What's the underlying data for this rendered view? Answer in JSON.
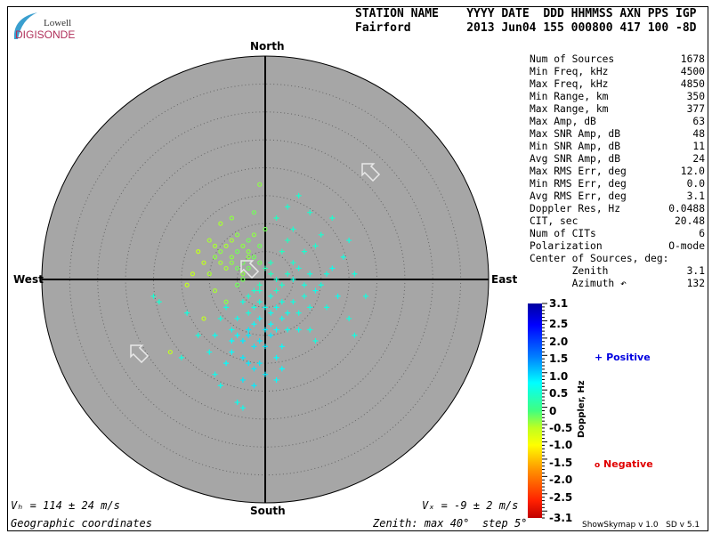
{
  "logo": {
    "line1": "Lowell",
    "line2": "DIGISONDE"
  },
  "header": {
    "labels": "STATION NAME    YYYY DATE  DDD HHMMSS AXN PPS IGP",
    "values": "Fairford        2013 Jun04 155 000800 417 100 -8D"
  },
  "stats": [
    {
      "label": "Num of Sources",
      "value": "1678"
    },
    {
      "label": "Min Freq, kHz",
      "value": "4500"
    },
    {
      "label": "Max Freq, kHz",
      "value": "4850"
    },
    {
      "label": "Min Range, km",
      "value": "350"
    },
    {
      "label": "Max Range, km",
      "value": "377"
    },
    {
      "label": "Max Amp, dB",
      "value": "63"
    },
    {
      "label": "Max SNR Amp, dB",
      "value": "48"
    },
    {
      "label": "Min SNR Amp, dB",
      "value": "11"
    },
    {
      "label": "Avg SNR Amp, dB",
      "value": "24"
    },
    {
      "label": "Max RMS Err, deg",
      "value": "12.0"
    },
    {
      "label": "Min RMS Err, deg",
      "value": "0.0"
    },
    {
      "label": "Avg RMS Err, deg",
      "value": "3.1"
    },
    {
      "label": "Doppler Res, Hz",
      "value": "0.0488"
    },
    {
      "label": "CIT, sec",
      "value": "20.48"
    },
    {
      "label": "Num of CITs",
      "value": "6"
    },
    {
      "label": "Polarization",
      "value": "O-mode"
    },
    {
      "label": "Center of Sources, deg:",
      "value": ""
    },
    {
      "label": "       Zenith",
      "value": "3.1"
    },
    {
      "label": "       Azimuth ↶",
      "value": "132"
    }
  ],
  "directions": {
    "north": "North",
    "south": "South",
    "east": "East",
    "west": "West"
  },
  "footer": {
    "vh": "Vₕ = 114 ± 24 m/s",
    "vz": "Vₓ = -9 ± 2 m/s",
    "coords": "Geographic coordinates",
    "zenith": "Zenith: max 40°  step 5°",
    "version": "ShowSkymap v 1.0   SD v 5.1"
  },
  "colors": {
    "disk": "#a6a6a6",
    "positive": "#0000e0",
    "negative": "#e00000"
  },
  "chart_data": {
    "type": "scatter",
    "projection": "polar skymap",
    "zenith_max": 40,
    "zenith_step": 5,
    "colorbar": {
      "label": "Doppler, Hz",
      "min": -3.1,
      "max": 3.1,
      "ticks": [
        "3.1",
        "2.5",
        "2.0",
        "1.5",
        "1.0",
        "0.5",
        "0",
        "-0.5",
        "-1.0",
        "-1.5",
        "-2.0",
        "-2.5",
        "-3.1"
      ]
    },
    "legend": {
      "positive": "Positive",
      "negative": "Negative"
    },
    "velocity_arrow_azimuth_deg": 315,
    "points_columns": [
      "east_deg",
      "north_deg",
      "doppler_hz"
    ],
    "points": [
      [
        -9,
        4,
        -0.3
      ],
      [
        -8,
        5,
        -0.3
      ],
      [
        -7,
        6,
        -0.4
      ],
      [
        -6,
        4,
        -0.3
      ],
      [
        -5,
        5,
        -0.2
      ],
      [
        -4,
        6,
        -0.3
      ],
      [
        -3,
        5,
        -0.3
      ],
      [
        -2,
        4,
        -0.2
      ],
      [
        -1,
        3,
        -0.2
      ],
      [
        -6,
        3,
        -0.3
      ],
      [
        -5,
        2,
        -0.2
      ],
      [
        -4,
        3,
        -0.2
      ],
      [
        -3,
        2,
        -0.2
      ],
      [
        -7,
        2,
        -0.4
      ],
      [
        -8,
        3,
        -0.4
      ],
      [
        -10,
        1,
        -0.4
      ],
      [
        -11,
        3,
        -0.5
      ],
      [
        -12,
        5,
        -0.5
      ],
      [
        -13,
        1,
        -0.5
      ],
      [
        -14,
        -1,
        -0.5
      ],
      [
        -9,
        -2,
        -0.4
      ],
      [
        -10,
        7,
        -0.4
      ],
      [
        -8,
        10,
        -0.4
      ],
      [
        -6,
        11,
        -0.3
      ],
      [
        -2,
        12,
        -0.2
      ],
      [
        -1,
        17,
        -0.3
      ],
      [
        -7,
        -4,
        -0.3
      ],
      [
        -5,
        -1,
        -0.2
      ],
      [
        -4,
        0,
        -0.2
      ],
      [
        -3,
        7,
        -0.2
      ],
      [
        -2,
        8,
        -0.3
      ],
      [
        -1,
        6,
        -0.2
      ],
      [
        0,
        9,
        -0.2
      ],
      [
        -6,
        7,
        -0.4
      ],
      [
        -9,
        6,
        -0.4
      ],
      [
        -11,
        -7,
        -0.5
      ],
      [
        -17,
        -13,
        -0.5
      ],
      [
        -5,
        8,
        -0.3
      ],
      [
        -4,
        1,
        -0.3
      ],
      [
        -3,
        4,
        -0.3
      ],
      [
        0,
        2,
        0.3
      ],
      [
        1,
        1,
        0.4
      ],
      [
        2,
        0,
        0.5
      ],
      [
        3,
        -1,
        0.5
      ],
      [
        4,
        1,
        0.5
      ],
      [
        5,
        0,
        0.6
      ],
      [
        6,
        2,
        0.6
      ],
      [
        7,
        -1,
        0.6
      ],
      [
        8,
        1,
        0.6
      ],
      [
        9,
        -2,
        0.7
      ],
      [
        -1,
        -1,
        0.4
      ],
      [
        -2,
        -2,
        0.5
      ],
      [
        -3,
        -3,
        0.5
      ],
      [
        -4,
        -4,
        0.6
      ],
      [
        -1,
        -4,
        0.6
      ],
      [
        0,
        -5,
        0.7
      ],
      [
        1,
        -3,
        0.6
      ],
      [
        2,
        -5,
        0.7
      ],
      [
        3,
        -4,
        0.6
      ],
      [
        4,
        -6,
        0.7
      ],
      [
        -1,
        -7,
        0.8
      ],
      [
        -2,
        -8,
        0.8
      ],
      [
        -3,
        -9,
        0.9
      ],
      [
        0,
        -9,
        0.9
      ],
      [
        1,
        -10,
        0.9
      ],
      [
        -1,
        -11,
        0.9
      ],
      [
        -2,
        -12,
        0.9
      ],
      [
        -3,
        -10,
        0.9
      ],
      [
        -4,
        -11,
        0.9
      ],
      [
        0,
        -12,
        0.9
      ],
      [
        1,
        -8,
        0.8
      ],
      [
        2,
        -9,
        0.8
      ],
      [
        -5,
        -7,
        0.7
      ],
      [
        -6,
        -9,
        0.7
      ],
      [
        -7,
        -5,
        0.6
      ],
      [
        -8,
        -7,
        0.6
      ],
      [
        -9,
        -10,
        0.7
      ],
      [
        -10,
        -13,
        0.7
      ],
      [
        5,
        -4,
        0.6
      ],
      [
        6,
        -6,
        0.6
      ],
      [
        7,
        -3,
        0.6
      ],
      [
        8,
        -5,
        0.6
      ],
      [
        10,
        -1,
        0.6
      ],
      [
        11,
        1,
        0.6
      ],
      [
        12,
        2,
        0.7
      ],
      [
        13,
        -3,
        0.7
      ],
      [
        14,
        4,
        0.6
      ],
      [
        15,
        7,
        0.6
      ],
      [
        16,
        1,
        0.6
      ],
      [
        18,
        -3,
        0.6
      ],
      [
        3,
        5,
        0.4
      ],
      [
        4,
        7,
        0.4
      ],
      [
        5,
        9,
        0.5
      ],
      [
        2,
        11,
        0.4
      ],
      [
        4,
        13,
        0.5
      ],
      [
        6,
        15,
        0.5
      ],
      [
        8,
        12,
        0.5
      ],
      [
        9,
        6,
        0.5
      ],
      [
        10,
        8,
        0.5
      ],
      [
        12,
        11,
        0.5
      ],
      [
        -4,
        -14,
        0.9
      ],
      [
        -3,
        -15,
        0.9
      ],
      [
        -2,
        -16,
        0.9
      ],
      [
        -4,
        -18,
        0.9
      ],
      [
        2,
        -14,
        0.8
      ],
      [
        3,
        -12,
        0.8
      ],
      [
        -7,
        -15,
        0.8
      ],
      [
        -6,
        -13,
        0.8
      ],
      [
        -12,
        -10,
        0.6
      ],
      [
        -14,
        -6,
        0.6
      ],
      [
        -9,
        -17,
        0.7
      ],
      [
        -15,
        -14,
        0.6
      ],
      [
        -3,
        -6,
        0.6
      ],
      [
        -2,
        -5,
        0.6
      ],
      [
        -1,
        -2,
        0.5
      ],
      [
        1,
        -6,
        0.7
      ],
      [
        2,
        -2,
        0.5
      ],
      [
        3,
        -7,
        0.7
      ],
      [
        -5,
        -10,
        0.8
      ],
      [
        -6,
        -11,
        0.8
      ],
      [
        5,
        3,
        0.5
      ],
      [
        6,
        -9,
        0.7
      ],
      [
        7,
        5,
        0.5
      ],
      [
        1,
        3,
        0.4
      ],
      [
        -1,
        -15,
        0.9
      ],
      [
        0,
        -17,
        0.9
      ],
      [
        -8,
        -19,
        0.7
      ],
      [
        -2,
        -19,
        0.9
      ],
      [
        8,
        -9,
        0.6
      ],
      [
        11,
        -5,
        0.6
      ],
      [
        15,
        -7,
        0.6
      ],
      [
        16,
        -10,
        0.6
      ],
      [
        -20,
        -3,
        0.5
      ],
      [
        -19,
        -4,
        0.5
      ],
      [
        9,
        -11,
        0.6
      ],
      [
        -5,
        -22,
        0.7
      ],
      [
        -4,
        -23,
        0.7
      ],
      [
        4,
        -9,
        0.7
      ],
      [
        2,
        -18,
        0.8
      ],
      [
        3,
        -16,
        0.8
      ]
    ]
  }
}
